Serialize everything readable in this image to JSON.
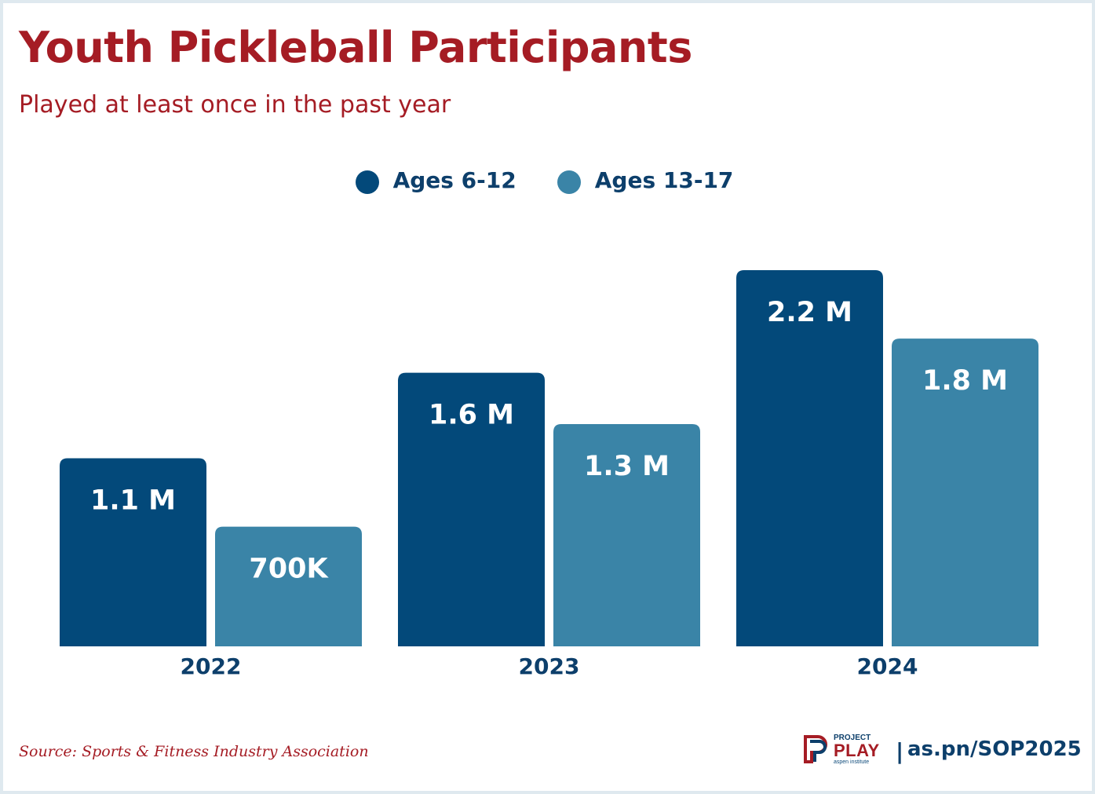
{
  "title": "Youth Pickleball Participants",
  "subtitle": "Played at least once in the past year",
  "colors": {
    "title": "#a51c24",
    "series_1": "#03497a",
    "series_2": "#3a84a7",
    "axis_text": "#0d3f6b",
    "bar_label": "#ffffff",
    "source": "#a51c24"
  },
  "legend": [
    {
      "name": "Ages 6-12"
    },
    {
      "name": "Ages 13-17"
    }
  ],
  "chart_data": {
    "type": "bar",
    "title": "Youth Pickleball Participants",
    "subtitle": "Played at least once in the past year",
    "categories": [
      "2022",
      "2023",
      "2024"
    ],
    "series": [
      {
        "name": "Ages 6-12",
        "values": [
          1.1,
          1.6,
          2.2
        ],
        "labels": [
          "1.1 M",
          "1.6 M",
          "2.2 M"
        ]
      },
      {
        "name": "Ages 13-17",
        "values": [
          0.7,
          1.3,
          1.8
        ],
        "labels": [
          "700K",
          "1.3 M",
          "1.8 M"
        ]
      }
    ],
    "units": "millions",
    "xlabel": "",
    "ylabel": "",
    "ylim": [
      0,
      2.2
    ],
    "grid": false,
    "legend_position": "top-center"
  },
  "footer": {
    "source": "Source: Sports & Fitness Industry Association",
    "logo_top": "PROJECT",
    "logo_main": "PLAY",
    "logo_bottom": "aspen institute",
    "divider": "|",
    "url": "as.pn/SOP2025"
  }
}
